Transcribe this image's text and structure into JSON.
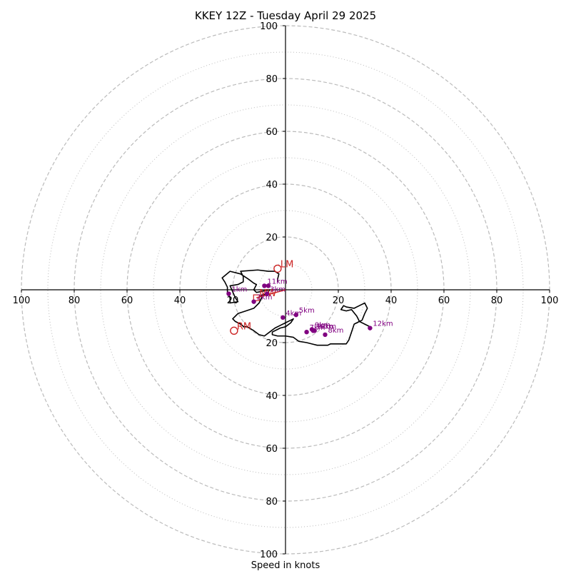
{
  "chart_data": {
    "type": "scatter",
    "title": "KKEY 12Z - Tuesday April 29 2025",
    "xlabel": "Speed in knots",
    "xlim": [
      -100,
      100
    ],
    "ylim": [
      -100,
      100
    ],
    "ring_major": [
      20,
      40,
      60,
      80,
      100
    ],
    "ring_minor": [
      10,
      30,
      50,
      70,
      90
    ],
    "x_ticks": [
      "100",
      "80",
      "60",
      "40",
      "20",
      "20",
      "40",
      "60",
      "80",
      "100"
    ],
    "x_tick_values": [
      -100,
      -80,
      -60,
      -40,
      -20,
      20,
      40,
      60,
      80,
      100
    ],
    "y_ticks": [
      "100",
      "80",
      "60",
      "40",
      "20",
      "20",
      "40",
      "60",
      "80",
      "100"
    ],
    "y_tick_values": [
      100,
      80,
      60,
      40,
      20,
      -20,
      -40,
      -60,
      -80,
      -100
    ],
    "hodograph": [
      [
        -3,
        -3
      ],
      [
        -3,
        -4
      ],
      [
        -2.5,
        -6
      ],
      [
        -4,
        -7
      ],
      [
        -6.5,
        -7
      ],
      [
        -10.5,
        -7.5
      ],
      [
        -17,
        -7
      ],
      [
        -16,
        -5
      ],
      [
        -16,
        -3
      ],
      [
        -18,
        -2
      ],
      [
        -21,
        -1.5
      ],
      [
        -19,
        3
      ],
      [
        -18,
        4.5
      ],
      [
        -21,
        5
      ],
      [
        -21,
        3
      ],
      [
        -22,
        1
      ],
      [
        -22,
        -1
      ],
      [
        -23,
        -3
      ],
      [
        -24,
        -4.5
      ],
      [
        -21,
        -7
      ],
      [
        -17,
        -6
      ],
      [
        -14,
        -4
      ],
      [
        -12,
        -2.5
      ],
      [
        -11,
        -2
      ],
      [
        -12,
        0
      ],
      [
        -11,
        1
      ],
      [
        -6,
        0
      ],
      [
        -7,
        1.5
      ],
      [
        -9,
        2
      ],
      [
        -9,
        3
      ],
      [
        -10,
        5
      ],
      [
        -12,
        7
      ],
      [
        -15,
        8
      ],
      [
        -18,
        9
      ],
      [
        -19,
        10
      ],
      [
        -20,
        11
      ],
      [
        -19,
        12
      ],
      [
        -17,
        13
      ],
      [
        -16,
        13.8
      ],
      [
        -16,
        14
      ],
      [
        -14.5,
        14
      ],
      [
        -12,
        15.5
      ],
      [
        -10,
        17
      ],
      [
        -8,
        17.5
      ],
      [
        -6,
        16
      ],
      [
        -4,
        14.5
      ],
      [
        -2,
        13.5
      ],
      [
        0,
        12.5
      ],
      [
        2,
        11.5
      ],
      [
        3,
        11
      ],
      [
        2,
        12.5
      ],
      [
        0,
        14
      ],
      [
        -2,
        14.5
      ],
      [
        -3,
        15
      ],
      [
        -5,
        16
      ],
      [
        -5,
        17
      ],
      [
        -3,
        17.5
      ],
      [
        0,
        17.5
      ],
      [
        3,
        18
      ],
      [
        5,
        19.5
      ],
      [
        8,
        20
      ],
      [
        10,
        20.5
      ],
      [
        12,
        21
      ],
      [
        14,
        21
      ],
      [
        16,
        21
      ],
      [
        17,
        20.5
      ],
      [
        21,
        20.5
      ],
      [
        23,
        20.5
      ],
      [
        24,
        19
      ],
      [
        25,
        16
      ],
      [
        26,
        13
      ],
      [
        28,
        12
      ],
      [
        29,
        11.5
      ],
      [
        30,
        9
      ],
      [
        31,
        7
      ],
      [
        30,
        5
      ],
      [
        28,
        6
      ],
      [
        26,
        7
      ],
      [
        23,
        6.5
      ],
      [
        22,
        6
      ],
      [
        21,
        7.5
      ],
      [
        23,
        8
      ],
      [
        25,
        7.5
      ],
      [
        27,
        10
      ],
      [
        28,
        12
      ],
      [
        30,
        13
      ],
      [
        32,
        14
      ]
    ],
    "height_markers": [
      {
        "label": "1km",
        "x": -21.5,
        "y": -1.5
      },
      {
        "label": "2km",
        "x": -12,
        "y": -4.5
      },
      {
        "label": "3km",
        "x": -7,
        "y": -1.5
      },
      {
        "label": "4km",
        "x": -1,
        "y": -10.5
      },
      {
        "label": "5km",
        "x": 4,
        "y": -9.5
      },
      {
        "label": "6km",
        "x": 11,
        "y": -15.5
      },
      {
        "label": "7km",
        "x": 8,
        "y": -16
      },
      {
        "label": "8km",
        "x": 15,
        "y": -17
      },
      {
        "label": "9km",
        "x": 10,
        "y": -15
      },
      {
        "label": "10km",
        "x": 10.5,
        "y": -15.5
      },
      {
        "label": "11km",
        "x": -8,
        "y": 1.5
      },
      {
        "label": "12km",
        "x": 32,
        "y": -14.5
      },
      {
        "label": "",
        "x": -6.5,
        "y": 1.5
      }
    ],
    "storm_motion": [
      {
        "label": "LM",
        "x": -3,
        "y": 8
      },
      {
        "label": "RM",
        "x": -19.5,
        "y": -15.5
      },
      {
        "label": "MW",
        "x": -11,
        "y": -3
      }
    ],
    "shear_vector": {
      "from": [
        -11,
        -3
      ],
      "to": [
        0,
        0
      ]
    },
    "colors": {
      "hodograph": "#000000",
      "markers": "#800080",
      "storm_motion": "#cc2222",
      "grid": "#bbbbbb",
      "axes": "#000000"
    }
  }
}
